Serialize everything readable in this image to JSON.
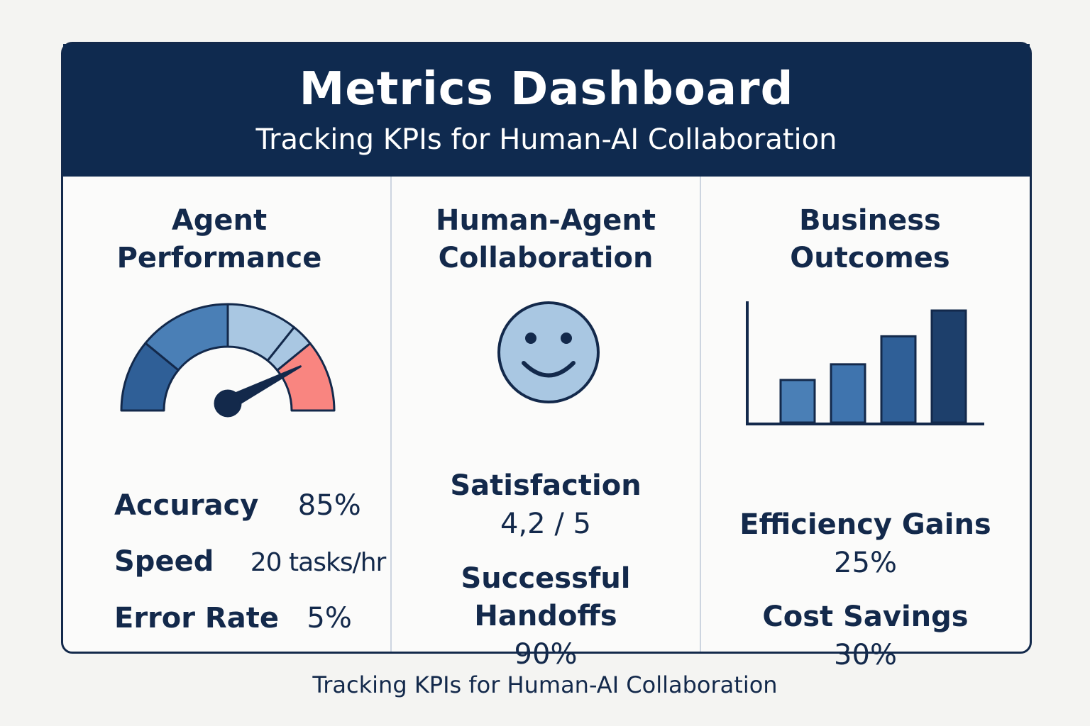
{
  "header": {
    "title": "Metrics Dashboard",
    "subtitle": "Tracking KPIs for Human-AI Collaboration"
  },
  "columns": [
    {
      "title_line1": "Agent",
      "title_line2": "Performance",
      "gauge": {
        "icon": "gauge-icon",
        "level_percent": 85
      },
      "metrics": [
        {
          "label": "Accuracy",
          "value": "85%"
        },
        {
          "label": "Speed",
          "value": "20 tasks/hr"
        },
        {
          "label": "Error Rate",
          "value": "5%"
        }
      ]
    },
    {
      "title_line1": "Human-Agent",
      "title_line2": "Collaboration",
      "icon": "smiley-face-icon",
      "satisfaction_label": "Satisfaction",
      "satisfaction_value": "4,2 / 5",
      "handoffs_label_line1": "Successful",
      "handoffs_label_line2": "Handoffs",
      "handoffs_value": "90%"
    },
    {
      "title_line1": "Business",
      "title_line2": "Outcomes",
      "icon": "bar-chart-icon",
      "bar_levels": [
        0.38,
        0.52,
        0.77,
        1.0
      ],
      "efficiency_label": "Efficiency Gains",
      "efficiency_value": "25%",
      "savings_label": "Cost Savings",
      "savings_value": "30%"
    }
  ],
  "colors": {
    "navy": "#0f2a4f",
    "blue_mid": "#3f74ae",
    "blue_dark": "#2f5f97",
    "blue_light": "#a9c7e2",
    "salmon": "#f98580"
  },
  "footer": {
    "caption": "Tracking KPIs for Human-AI Collaboration"
  }
}
